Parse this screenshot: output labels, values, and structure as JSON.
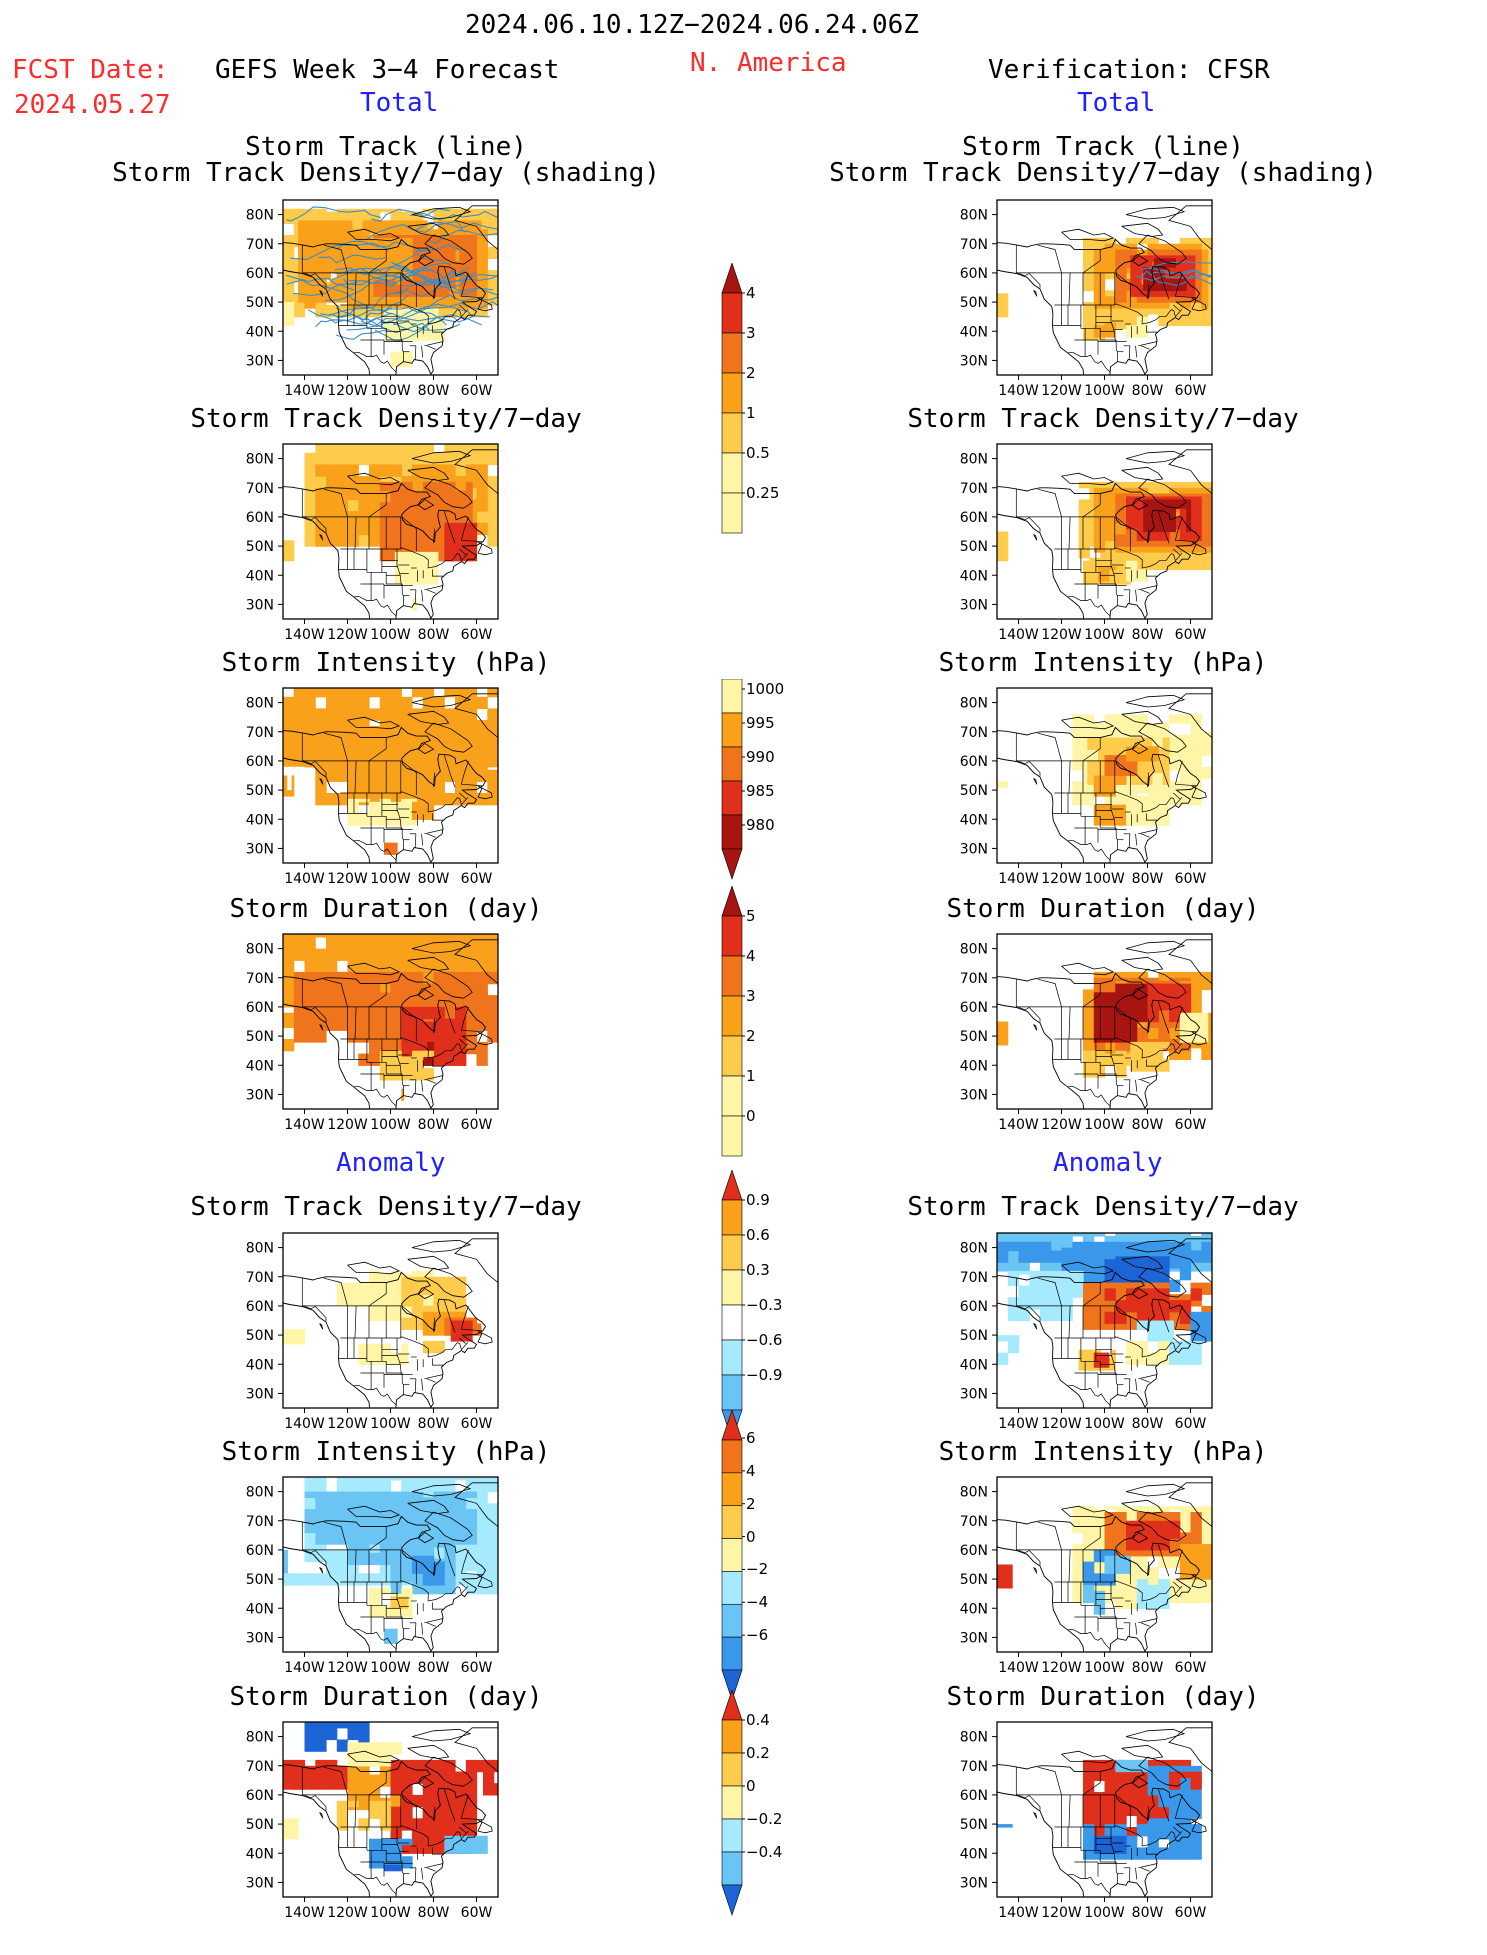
{
  "header": {
    "period": "2024.06.10.12Z−2024.06.24.06Z",
    "fcst_label": "FCST Date:",
    "fcst_date": "2024.05.27",
    "product": "GEFS Week 3−4 Forecast",
    "region": "N. America",
    "verification": "Verification: CFSR"
  },
  "sections": {
    "total": "Total",
    "anomaly": "Anomaly"
  },
  "panel_titles": {
    "track_line": "Storm Track (line)",
    "track_shading": "Storm Track Density/7−day (shading)",
    "density": "Storm Track Density/7−day",
    "intensity": "Storm Intensity (hPa)",
    "duration": "Storm Duration (day)"
  },
  "axes": {
    "lat_labels": [
      "80N",
      "70N",
      "60N",
      "50N",
      "40N",
      "30N"
    ],
    "lon_labels": [
      "140W",
      "120W",
      "100W",
      "80W",
      "60W"
    ]
  },
  "colorbars": {
    "density_total": [
      "4",
      "3",
      "2",
      "1",
      "0.5",
      "0.25"
    ],
    "intensity_total": [
      "1000",
      "995",
      "990",
      "985",
      "980"
    ],
    "duration_total": [
      "5",
      "4",
      "3",
      "2",
      "1",
      "0"
    ],
    "density_anom": [
      "0.9",
      "0.6",
      "0.3",
      "−0.3",
      "−0.6",
      "−0.9"
    ],
    "intensity_anom": [
      "6",
      "4",
      "2",
      "0",
      "−2",
      "−4",
      "−6"
    ],
    "duration_anom": [
      "0.4",
      "0.2",
      "0",
      "−0.2",
      "−0.4"
    ]
  },
  "colors": {
    "pale_yellow": "#fff5a6",
    "light_orange": "#fecb4b",
    "orange": "#f9a11b",
    "dark_orange": "#f0741b",
    "red": "#e02f1b",
    "dark_red": "#a8140f",
    "light_blue": "#a6eaff",
    "mid_blue": "#6ac4f4",
    "blue": "#3a98ea",
    "dark_blue": "#1d64d6",
    "track_line": "#3a8ec8"
  }
}
